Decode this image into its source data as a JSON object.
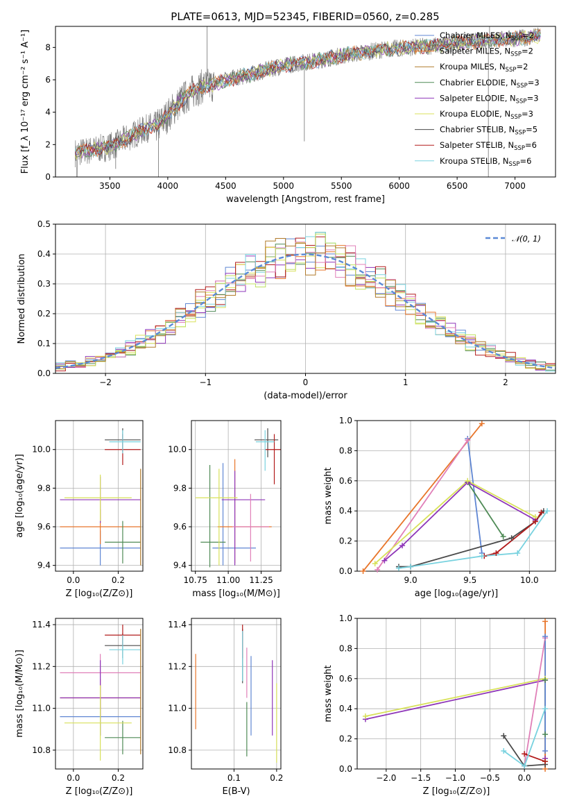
{
  "figure": {
    "title": "PLATE=0613, MJD=52345, FIBERID=0560, z=0.285"
  },
  "palette": {
    "blue": "#5f86d3",
    "orange": "#e8752a",
    "brown": "#b07a2a",
    "green": "#4e8a55",
    "purple": "#8e35b8",
    "yellow": "#d8e15a",
    "darkgray": "#4a4a4a",
    "red": "#b21a1a",
    "cyan": "#78d2df",
    "pink": "#e07fb8",
    "lime": "#bfe060",
    "gray": "#808080"
  },
  "chart_data": [
    {
      "id": "spectrum",
      "type": "line",
      "xlabel": "wavelength [Angstrom, rest frame]",
      "ylabel": "Flux [f_λ 10⁻¹⁷ erg cm⁻² s⁻¹ A⁻¹]",
      "xlim": [
        3030,
        7350
      ],
      "ylim": [
        0,
        9.3
      ],
      "xticks": [
        "3500",
        "4000",
        "4500",
        "5000",
        "5500",
        "6000",
        "6500",
        "7000"
      ],
      "yticks": [
        "0",
        "2",
        "4",
        "6",
        "8"
      ],
      "continuum": [
        [
          3200,
          1.5
        ],
        [
          3300,
          1.6
        ],
        [
          3450,
          1.8
        ],
        [
          3550,
          2.0
        ],
        [
          3700,
          2.6
        ],
        [
          3850,
          3.1
        ],
        [
          3920,
          3.2
        ],
        [
          4000,
          3.8
        ],
        [
          4100,
          4.6
        ],
        [
          4200,
          5.2
        ],
        [
          4300,
          5.6
        ],
        [
          4400,
          5.7
        ],
        [
          4500,
          6.0
        ],
        [
          4700,
          6.3
        ],
        [
          4900,
          6.7
        ],
        [
          5100,
          7.0
        ],
        [
          5300,
          7.2
        ],
        [
          5500,
          7.5
        ],
        [
          5700,
          7.7
        ],
        [
          5900,
          7.9
        ],
        [
          6100,
          8.0
        ],
        [
          6300,
          8.1
        ],
        [
          6500,
          8.3
        ],
        [
          6700,
          8.4
        ],
        [
          6900,
          8.5
        ],
        [
          7100,
          8.6
        ],
        [
          7200,
          8.7
        ]
      ],
      "legend": [
        {
          "label": "Chabrier MILES, N",
          "sub": "SSP",
          "tail": "=2",
          "color": "blue"
        },
        {
          "label": "Salpeter MILES, N",
          "sub": "SSP",
          "tail": "=2",
          "color": "orange"
        },
        {
          "label": "Kroupa MILES, N",
          "sub": "SSP",
          "tail": "=2",
          "color": "brown"
        },
        {
          "label": "Chabrier ELODIE, N",
          "sub": "SSP",
          "tail": "=3",
          "color": "green"
        },
        {
          "label": "Salpeter ELODIE, N",
          "sub": "SSP",
          "tail": "=3",
          "color": "purple"
        },
        {
          "label": "Kroupa ELODIE, N",
          "sub": "SSP",
          "tail": "=3",
          "color": "yellow"
        },
        {
          "label": "Chabrier STELIB, N",
          "sub": "SSP",
          "tail": "=5",
          "color": "darkgray"
        },
        {
          "label": "Salpeter STELIB, N",
          "sub": "SSP",
          "tail": "=6",
          "color": "red"
        },
        {
          "label": "Kroupa STELIB, N",
          "sub": "SSP",
          "tail": "=6",
          "color": "cyan"
        }
      ]
    },
    {
      "id": "residuals",
      "type": "line",
      "xlabel": "(data-model)/error",
      "ylabel": "Normed distribution",
      "xlim": [
        -2.5,
        2.5
      ],
      "ylim": [
        0,
        0.5
      ],
      "xticks": [
        "−2",
        "−1",
        "0",
        "1",
        "2"
      ],
      "yticks": [
        "0.0",
        "0.1",
        "0.2",
        "0.3",
        "0.4",
        "0.5"
      ],
      "grid": true,
      "legend": "𝒩(0, 1)",
      "legend_position": "upper right",
      "series_colors": [
        "blue",
        "orange",
        "green",
        "purple",
        "yellow",
        "red",
        "cyan",
        "pink",
        "lime",
        "brown"
      ]
    },
    {
      "id": "z-vs-age",
      "type": "scatter",
      "xlabel": "Z [log₁₀(Z/Z⊙)]",
      "ylabel": "age  [log₁₀(age/yr)]",
      "xlim": [
        -0.08,
        0.31
      ],
      "ylim": [
        9.37,
        10.15
      ],
      "xticks": [
        "0.0",
        "0.2"
      ],
      "yticks": [
        "9.4",
        "9.6",
        "9.8",
        "10.0"
      ],
      "grid": true,
      "points": [
        {
          "x": 0.12,
          "xerr": [
            0.18,
            0.18
          ],
          "y": 9.49,
          "yerr": [
            0.09,
            0.09
          ],
          "color": "blue"
        },
        {
          "x": 0.12,
          "xerr": [
            0.18,
            0.18
          ],
          "y": 9.6,
          "yerr": [
            0.09,
            0.09
          ],
          "color": "orange"
        },
        {
          "x": 0.22,
          "xerr": [
            0.08,
            0.08
          ],
          "y": 9.52,
          "yerr": [
            0.11,
            0.11
          ],
          "color": "green"
        },
        {
          "x": 0.12,
          "xerr": [
            0.18,
            0.18
          ],
          "y": 9.74,
          "yerr": [
            0.12,
            0.12
          ],
          "color": "purple"
        },
        {
          "x": 0.12,
          "xerr": [
            0.16,
            0.14
          ],
          "y": 9.75,
          "yerr": [
            0.12,
            0.12
          ],
          "color": "yellow"
        },
        {
          "x": 0.22,
          "xerr": [
            0.08,
            0.08
          ],
          "y": 10.05,
          "yerr": [
            0.06,
            0.06
          ],
          "color": "darkgray"
        },
        {
          "x": 0.22,
          "xerr": [
            0.08,
            0.08
          ],
          "y": 10.0,
          "yerr": [
            0.08,
            0.08
          ],
          "color": "red"
        },
        {
          "x": 0.22,
          "xerr": [
            0.06,
            0.08
          ],
          "y": 10.04,
          "yerr": [
            0.06,
            0.06
          ],
          "color": "cyan"
        },
        {
          "x": 0.3,
          "xerr": [
            0.0,
            0.0
          ],
          "y": 9.65,
          "yerr": [
            0.25,
            0.25
          ],
          "color": "brown"
        }
      ]
    },
    {
      "id": "mass-vs-age",
      "type": "scatter",
      "xlabel": "mass [log₁₀(M/M⊙)]",
      "ylabel": "",
      "xlim": [
        10.72,
        11.4
      ],
      "ylim": [
        9.37,
        10.15
      ],
      "xticks": [
        "10.75",
        "11.00",
        "11.25"
      ],
      "yticks": [
        "9.4",
        "9.6",
        "9.8",
        "10.0"
      ],
      "grid": true,
      "points": [
        {
          "x": 10.96,
          "xerr": [
            0.08,
            0.25
          ],
          "y": 9.49,
          "yerr": [
            0.09,
            0.44
          ],
          "color": "blue"
        },
        {
          "x": 11.05,
          "xerr": [
            0.13,
            0.28
          ],
          "y": 9.6,
          "yerr": [
            0.19,
            0.35
          ],
          "color": "orange"
        },
        {
          "x": 10.86,
          "xerr": [
            0.07,
            0.12
          ],
          "y": 9.52,
          "yerr": [
            0.13,
            0.4
          ],
          "color": "green"
        },
        {
          "x": 11.05,
          "xerr": [
            0.1,
            0.23
          ],
          "y": 9.74,
          "yerr": [
            0.34,
            0.15
          ],
          "color": "purple"
        },
        {
          "x": 10.93,
          "xerr": [
            0.18,
            0.14
          ],
          "y": 9.75,
          "yerr": [
            0.35,
            0.15
          ],
          "color": "yellow"
        },
        {
          "x": 11.3,
          "xerr": [
            0.1,
            0.08
          ],
          "y": 10.05,
          "yerr": [
            0.09,
            0.06
          ],
          "color": "darkgray"
        },
        {
          "x": 11.35,
          "xerr": [
            0.07,
            0.07
          ],
          "y": 10.0,
          "yerr": [
            0.18,
            0.08
          ],
          "color": "red"
        },
        {
          "x": 11.28,
          "xerr": [
            0.07,
            0.07
          ],
          "y": 10.04,
          "yerr": [
            0.15,
            0.06
          ],
          "color": "cyan"
        },
        {
          "x": 11.17,
          "xerr": [
            0.14,
            0.14
          ],
          "y": 9.6,
          "yerr": [
            0.18,
            0.17
          ],
          "color": "pink"
        }
      ]
    },
    {
      "id": "age-vs-weight",
      "type": "line",
      "xlabel": "age  [log₁₀(age/yr)]",
      "ylabel": "mass weight",
      "xlim": [
        8.55,
        10.22
      ],
      "ylim": [
        0,
        1
      ],
      "xticks": [
        "9.0",
        "9.5",
        "10.0"
      ],
      "yticks": [
        "0.0",
        "0.2",
        "0.4",
        "0.6",
        "0.8",
        "1.0"
      ],
      "grid": true,
      "series": [
        {
          "color": "blue",
          "points": [
            [
              9.48,
              0.88
            ],
            [
              9.6,
              0.12
            ]
          ]
        },
        {
          "color": "orange",
          "points": [
            [
              8.6,
              0.0
            ],
            [
              9.6,
              0.98
            ]
          ]
        },
        {
          "color": "pink",
          "points": [
            [
              8.72,
              0.01
            ],
            [
              9.48,
              0.87
            ]
          ]
        },
        {
          "color": "green",
          "points": [
            [
              9.48,
              0.59
            ],
            [
              9.78,
              0.23
            ]
          ]
        },
        {
          "color": "purple",
          "points": [
            [
              8.78,
              0.07
            ],
            [
              8.93,
              0.17
            ],
            [
              9.48,
              0.59
            ],
            [
              10.05,
              0.34
            ]
          ]
        },
        {
          "color": "yellow",
          "points": [
            [
              8.7,
              0.05
            ],
            [
              9.48,
              0.6
            ],
            [
              10.05,
              0.36
            ]
          ]
        },
        {
          "color": "darkgray",
          "points": [
            [
              8.9,
              0.03
            ],
            [
              9.0,
              0.03
            ],
            [
              9.85,
              0.22
            ],
            [
              10.05,
              0.33
            ],
            [
              10.12,
              0.4
            ]
          ]
        },
        {
          "color": "red",
          "points": [
            [
              9.62,
              0.1
            ],
            [
              9.72,
              0.12
            ],
            [
              10.05,
              0.33
            ],
            [
              10.1,
              0.39
            ]
          ]
        },
        {
          "color": "cyan",
          "points": [
            [
              8.9,
              0.02
            ],
            [
              9.0,
              0.03
            ],
            [
              9.6,
              0.1
            ],
            [
              9.9,
              0.12
            ],
            [
              10.15,
              0.4
            ]
          ]
        }
      ]
    },
    {
      "id": "z-vs-mass",
      "type": "scatter",
      "xlabel": "Z [log₁₀(Z/Z⊙)]",
      "ylabel": "mass [log₁₀(M/M⊙)]",
      "xlim": [
        -0.08,
        0.31
      ],
      "ylim": [
        10.71,
        11.43
      ],
      "xticks": [
        "0.0",
        "0.2"
      ],
      "yticks": [
        "10.8",
        "11.0",
        "11.2",
        "11.4"
      ],
      "grid": true,
      "points": [
        {
          "x": 0.12,
          "xerr": [
            0.18,
            0.18
          ],
          "y": 10.96,
          "yerr": [
            0.09,
            0.09
          ],
          "color": "blue"
        },
        {
          "x": 0.12,
          "xerr": [
            0.18,
            0.18
          ],
          "y": 11.05,
          "yerr": [
            0.09,
            0.09
          ],
          "color": "orange"
        },
        {
          "x": 0.12,
          "xerr": [
            0.18,
            0.18
          ],
          "y": 11.17,
          "yerr": [
            0.09,
            0.09
          ],
          "color": "pink"
        },
        {
          "x": 0.22,
          "xerr": [
            0.08,
            0.08
          ],
          "y": 10.86,
          "yerr": [
            0.08,
            0.08
          ],
          "color": "green"
        },
        {
          "x": 0.12,
          "xerr": [
            0.18,
            0.18
          ],
          "y": 11.05,
          "yerr": [
            0.18,
            0.18
          ],
          "color": "purple"
        },
        {
          "x": 0.12,
          "xerr": [
            0.16,
            0.14
          ],
          "y": 10.93,
          "yerr": [
            0.18,
            0.18
          ],
          "color": "yellow"
        },
        {
          "x": 0.22,
          "xerr": [
            0.08,
            0.08
          ],
          "y": 11.3,
          "yerr": [
            0.06,
            0.06
          ],
          "color": "darkgray"
        },
        {
          "x": 0.22,
          "xerr": [
            0.08,
            0.08
          ],
          "y": 11.35,
          "yerr": [
            0.05,
            0.05
          ],
          "color": "red"
        },
        {
          "x": 0.22,
          "xerr": [
            0.06,
            0.08
          ],
          "y": 11.28,
          "yerr": [
            0.07,
            0.07
          ],
          "color": "cyan"
        },
        {
          "x": 0.3,
          "xerr": [
            0.0,
            0.0
          ],
          "y": 11.08,
          "yerr": [
            0.3,
            0.3
          ],
          "color": "brown"
        }
      ]
    },
    {
      "id": "ebv-vs-mass",
      "type": "scatter",
      "xlabel": "E(B-V)",
      "ylabel": "",
      "xlim": [
        0.0,
        0.21
      ],
      "ylim": [
        10.71,
        11.43
      ],
      "xticks": [
        "0.1",
        "0.2"
      ],
      "yticks": [
        "10.8",
        "11.0",
        "11.2",
        "11.4"
      ],
      "grid": true,
      "points": [
        {
          "x": 0.01,
          "y": 11.08,
          "yerr": [
            0.18,
            0.18
          ],
          "color": "orange"
        },
        {
          "x": 0.12,
          "y": 11.25,
          "yerr": [
            0.13,
            0.13
          ],
          "color": "darkgray"
        },
        {
          "x": 0.12,
          "y": 11.32,
          "yerr": [
            0.08,
            0.08
          ],
          "color": "red"
        },
        {
          "x": 0.12,
          "y": 11.25,
          "yerr": [
            0.12,
            0.12
          ],
          "color": "cyan"
        },
        {
          "x": 0.13,
          "y": 10.9,
          "yerr": [
            0.13,
            0.13
          ],
          "color": "green"
        },
        {
          "x": 0.13,
          "y": 11.17,
          "yerr": [
            0.12,
            0.12
          ],
          "color": "pink"
        },
        {
          "x": 0.14,
          "y": 11.06,
          "yerr": [
            0.19,
            0.19
          ],
          "color": "blue"
        },
        {
          "x": 0.19,
          "y": 11.05,
          "yerr": [
            0.18,
            0.18
          ],
          "color": "purple"
        },
        {
          "x": 0.2,
          "y": 10.93,
          "yerr": [
            0.19,
            0.19
          ],
          "color": "yellow"
        }
      ]
    },
    {
      "id": "z-vs-weight",
      "type": "line",
      "xlabel": "Z [log₁₀(Z/Z⊙)]",
      "ylabel": "mass weight",
      "xlim": [
        -2.42,
        0.45
      ],
      "ylim": [
        0,
        1
      ],
      "xticks": [
        "−2.0",
        "−1.5",
        "−1.0",
        "−0.5",
        "0.0"
      ],
      "yticks": [
        "0.0",
        "0.2",
        "0.4",
        "0.6",
        "0.8",
        "1.0"
      ],
      "grid": true,
      "series": [
        {
          "color": "purple",
          "points": [
            [
              -2.3,
              0.33
            ],
            [
              0.3,
              0.59
            ],
            [
              0.3,
              0.07
            ]
          ]
        },
        {
          "color": "yellow",
          "points": [
            [
              -2.3,
              0.35
            ],
            [
              0.3,
              0.6
            ],
            [
              0.3,
              0.05
            ]
          ]
        },
        {
          "color": "pink",
          "points": [
            [
              0.0,
              0.02
            ],
            [
              0.3,
              0.87
            ]
          ]
        },
        {
          "color": "orange",
          "points": [
            [
              0.3,
              0.0
            ],
            [
              0.3,
              0.98
            ]
          ]
        },
        {
          "color": "darkgray",
          "points": [
            [
              -0.3,
              0.22
            ],
            [
              0.0,
              0.02
            ],
            [
              0.3,
              0.03
            ]
          ]
        },
        {
          "color": "red",
          "points": [
            [
              0.0,
              0.1
            ],
            [
              0.3,
              0.05
            ]
          ]
        },
        {
          "color": "cyan",
          "points": [
            [
              -0.3,
              0.12
            ],
            [
              0.0,
              0.02
            ],
            [
              0.3,
              0.4
            ]
          ]
        },
        {
          "color": "green",
          "points": [
            [
              0.3,
              0.23
            ],
            [
              0.3,
              0.59
            ]
          ]
        },
        {
          "color": "blue",
          "points": [
            [
              0.3,
              0.88
            ],
            [
              0.3,
              0.12
            ]
          ]
        }
      ]
    }
  ]
}
